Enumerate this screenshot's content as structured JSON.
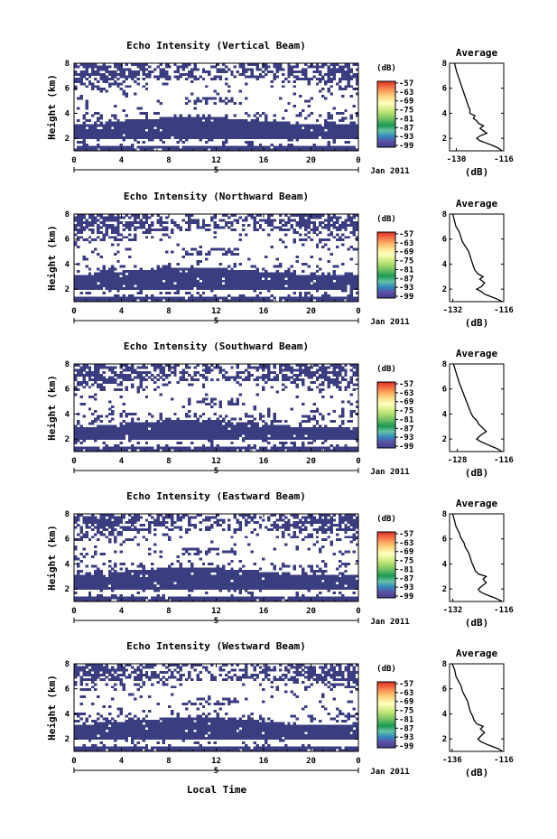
{
  "figure": {
    "xlabel": "Local Time",
    "date_label": "Jan 2011",
    "day_label": "5",
    "colorbar_unit": "(dB)",
    "colorbar_ticks": [
      "-57",
      "-63",
      "-69",
      "-75",
      "-81",
      "-87",
      "-93",
      "-99"
    ],
    "colorbar_colors": [
      "#d73027",
      "#f46d43",
      "#fdae61",
      "#fee08b",
      "#ffffbf",
      "#d9ef8b",
      "#a6d96a",
      "#66bd63",
      "#1a9850",
      "#66c2a5",
      "#3288bd",
      "#5e4fa2",
      "#3f3f8f"
    ],
    "echo_color": "#3a3d80"
  },
  "chart_data": [
    {
      "type": "heatmap",
      "title": "Echo Intensity (Vertical Beam)",
      "ylabel": "Height (km)",
      "xlim": [
        0,
        24
      ],
      "ylim": [
        1,
        8
      ],
      "xticks": [
        "0",
        "4",
        "8",
        "12",
        "16",
        "20",
        "0"
      ],
      "yticks": [
        "2",
        "4",
        "6",
        "8"
      ],
      "avg_title": "Average",
      "avg_xlabel": "(dB)",
      "avg_xticks": [
        "-130",
        "-116"
      ],
      "avg_xlim": [
        -132,
        -116
      ],
      "avg_profile": [
        [
          -116.5,
          1.0
        ],
        [
          -117.5,
          1.2
        ],
        [
          -119,
          1.4
        ],
        [
          -121,
          1.6
        ],
        [
          -123,
          1.8
        ],
        [
          -124,
          2.0
        ],
        [
          -123,
          2.2
        ],
        [
          -121,
          2.4
        ],
        [
          -122,
          2.6
        ],
        [
          -123,
          2.8
        ],
        [
          -122,
          3.0
        ],
        [
          -123.5,
          3.2
        ],
        [
          -124,
          3.4
        ],
        [
          -125,
          3.6
        ],
        [
          -124.5,
          3.8
        ],
        [
          -126,
          4.0
        ],
        [
          -126,
          4.3
        ],
        [
          -126.5,
          4.6
        ],
        [
          -127,
          5.0
        ],
        [
          -127.5,
          5.4
        ],
        [
          -128,
          5.8
        ],
        [
          -128.5,
          6.2
        ],
        [
          -129,
          6.6
        ],
        [
          -129.5,
          7.0
        ],
        [
          -130,
          7.4
        ],
        [
          -130.5,
          8.0
        ]
      ]
    },
    {
      "type": "heatmap",
      "title": "Echo Intensity (Northward Beam)",
      "ylabel": "Height (km)",
      "xlim": [
        0,
        24
      ],
      "ylim": [
        1,
        8
      ],
      "xticks": [
        "0",
        "4",
        "8",
        "12",
        "16",
        "20",
        "0"
      ],
      "yticks": [
        "2",
        "4",
        "6",
        "8"
      ],
      "avg_title": "Average",
      "avg_xlabel": "(dB)",
      "avg_xticks": [
        "-132",
        "-116"
      ],
      "avg_xlim": [
        -133,
        -116
      ],
      "avg_profile": [
        [
          -116.5,
          1.0
        ],
        [
          -118,
          1.2
        ],
        [
          -120,
          1.4
        ],
        [
          -122,
          1.6
        ],
        [
          -123,
          1.8
        ],
        [
          -124.5,
          2.0
        ],
        [
          -123,
          2.2
        ],
        [
          -122,
          2.5
        ],
        [
          -123.5,
          2.8
        ],
        [
          -122.5,
          3.0
        ],
        [
          -124,
          3.2
        ],
        [
          -125,
          3.5
        ],
        [
          -125.5,
          3.8
        ],
        [
          -126,
          4.2
        ],
        [
          -126.5,
          4.6
        ],
        [
          -127,
          5.0
        ],
        [
          -128,
          5.4
        ],
        [
          -129,
          5.8
        ],
        [
          -129.5,
          6.2
        ],
        [
          -130,
          6.6
        ],
        [
          -131,
          7.0
        ],
        [
          -131.5,
          7.5
        ],
        [
          -132,
          8.0
        ]
      ]
    },
    {
      "type": "heatmap",
      "title": "Echo Intensity (Southward Beam)",
      "ylabel": "Height (km)",
      "xlim": [
        0,
        24
      ],
      "ylim": [
        1,
        8
      ],
      "xticks": [
        "0",
        "4",
        "8",
        "12",
        "16",
        "20",
        "0"
      ],
      "yticks": [
        "2",
        "4",
        "6",
        "8"
      ],
      "avg_title": "Average",
      "avg_xlabel": "(dB)",
      "avg_xticks": [
        "-128",
        "-116"
      ],
      "avg_xlim": [
        -130,
        -116
      ],
      "avg_profile": [
        [
          -116.5,
          1.0
        ],
        [
          -117.5,
          1.2
        ],
        [
          -119,
          1.4
        ],
        [
          -120.5,
          1.6
        ],
        [
          -122,
          1.8
        ],
        [
          -123,
          2.0
        ],
        [
          -122,
          2.3
        ],
        [
          -120.5,
          2.6
        ],
        [
          -121.5,
          2.9
        ],
        [
          -122.5,
          3.2
        ],
        [
          -123,
          3.5
        ],
        [
          -124,
          3.8
        ],
        [
          -124.5,
          4.1
        ],
        [
          -125,
          4.5
        ],
        [
          -125.5,
          4.9
        ],
        [
          -126,
          5.3
        ],
        [
          -126.5,
          5.7
        ],
        [
          -127,
          6.1
        ],
        [
          -127.5,
          6.5
        ],
        [
          -128,
          7.0
        ],
        [
          -128.5,
          7.5
        ],
        [
          -129,
          8.0
        ]
      ]
    },
    {
      "type": "heatmap",
      "title": "Echo Intensity (Eastward Beam)",
      "ylabel": "Height (km)",
      "xlim": [
        0,
        24
      ],
      "ylim": [
        1,
        8
      ],
      "xticks": [
        "0",
        "4",
        "8",
        "12",
        "16",
        "20",
        "0"
      ],
      "yticks": [
        "2",
        "4",
        "6",
        "8"
      ],
      "avg_title": "Average",
      "avg_xlabel": "(dB)",
      "avg_xticks": [
        "-132",
        "-116"
      ],
      "avg_xlim": [
        -133,
        -116
      ],
      "avg_profile": [
        [
          -116.5,
          1.0
        ],
        [
          -118,
          1.2
        ],
        [
          -120,
          1.4
        ],
        [
          -122,
          1.6
        ],
        [
          -123.5,
          1.8
        ],
        [
          -124,
          2.0
        ],
        [
          -123,
          2.2
        ],
        [
          -121.5,
          2.5
        ],
        [
          -122.5,
          2.8
        ],
        [
          -121.5,
          3.0
        ],
        [
          -124,
          3.2
        ],
        [
          -125,
          3.5
        ],
        [
          -125.5,
          3.8
        ],
        [
          -126,
          4.1
        ],
        [
          -126.5,
          4.5
        ],
        [
          -127,
          4.9
        ],
        [
          -128,
          5.3
        ],
        [
          -128.5,
          5.7
        ],
        [
          -129.5,
          6.1
        ],
        [
          -130,
          6.5
        ],
        [
          -131,
          7.0
        ],
        [
          -131.5,
          7.5
        ],
        [
          -132,
          8.0
        ]
      ]
    },
    {
      "type": "heatmap",
      "title": "Echo Intensity (Westward Beam)",
      "ylabel": "Height (km)",
      "xlim": [
        0,
        24
      ],
      "ylim": [
        1,
        8
      ],
      "xticks": [
        "0",
        "4",
        "8",
        "12",
        "16",
        "20",
        "0"
      ],
      "yticks": [
        "2",
        "4",
        "6",
        "8"
      ],
      "avg_title": "Average",
      "avg_xlabel": "(dB)",
      "avg_xticks": [
        "-136",
        "-116"
      ],
      "avg_xlim": [
        -137,
        -116
      ],
      "avg_profile": [
        [
          -116.5,
          1.0
        ],
        [
          -118,
          1.2
        ],
        [
          -120.5,
          1.4
        ],
        [
          -123,
          1.6
        ],
        [
          -125,
          1.8
        ],
        [
          -126,
          2.0
        ],
        [
          -125,
          2.2
        ],
        [
          -123.5,
          2.5
        ],
        [
          -125,
          2.8
        ],
        [
          -124,
          3.0
        ],
        [
          -126.5,
          3.2
        ],
        [
          -127.5,
          3.5
        ],
        [
          -128,
          3.8
        ],
        [
          -129,
          4.2
        ],
        [
          -129.5,
          4.6
        ],
        [
          -130,
          5.0
        ],
        [
          -131,
          5.4
        ],
        [
          -132,
          5.8
        ],
        [
          -132.5,
          6.2
        ],
        [
          -133.5,
          6.6
        ],
        [
          -134.5,
          7.0
        ],
        [
          -135,
          7.5
        ],
        [
          -136,
          8.0
        ]
      ]
    }
  ]
}
